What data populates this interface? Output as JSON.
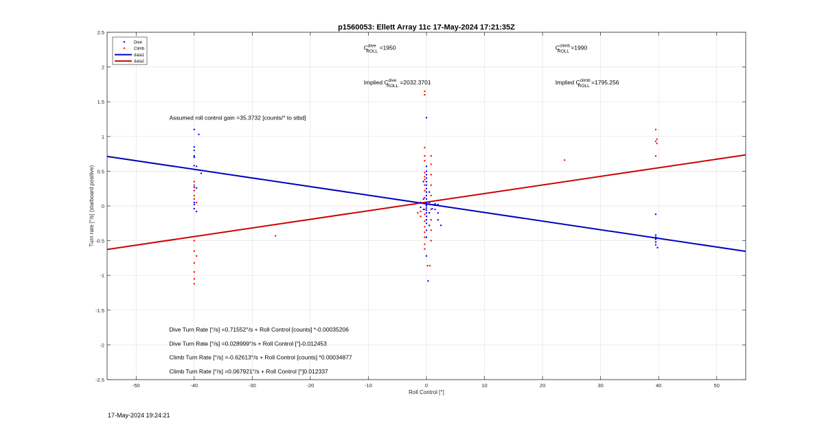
{
  "figure_timestamp": "17-May-2024 19:24:21",
  "chart_data": {
    "type": "scatter",
    "title": "p1560053: Ellett Array 11c 17-May-2024 17:21:35Z",
    "xlabel": "Roll Control [°]",
    "ylabel": "Turn rate [°/s] (starboard positive)",
    "xlim": [
      -55,
      55
    ],
    "ylim": [
      -2.5,
      2.5
    ],
    "xticks": [
      -50,
      -40,
      -30,
      -20,
      -10,
      0,
      10,
      20,
      30,
      40,
      50
    ],
    "xtick_labels": [
      "-50",
      "-40",
      "-30",
      "-20",
      "-10",
      "0",
      "10",
      "20",
      "30",
      "40",
      "50"
    ],
    "yticks": [
      -2.5,
      -2,
      -1.5,
      -1,
      -0.5,
      0,
      0.5,
      1,
      1.5,
      2,
      2.5
    ],
    "ytick_labels": [
      "-2.5",
      "-2",
      "-1.5",
      "-1",
      "-0.5",
      "0",
      "0.5",
      "1",
      "1.5",
      "2",
      "2.5"
    ],
    "grid": true,
    "legend_position": "top-left",
    "legend": [
      {
        "label": "Dive",
        "type": "marker",
        "color": "#0000ff"
      },
      {
        "label": "Climb",
        "type": "marker",
        "color": "#ff0000"
      },
      {
        "label": "data1",
        "type": "line",
        "color": "#0000bf"
      },
      {
        "label": "data2",
        "type": "line",
        "color": "#cc0000"
      }
    ],
    "series": [
      {
        "name": "Dive",
        "mode": "markers",
        "color": "#0000ff",
        "points": [
          [
            -40,
            1.1
          ],
          [
            -39.2,
            1.03
          ],
          [
            -40,
            0.85
          ],
          [
            -40,
            0.8
          ],
          [
            -40,
            0.72
          ],
          [
            -40,
            0.7
          ],
          [
            -40,
            0.58
          ],
          [
            -39.6,
            0.57
          ],
          [
            -38.8,
            0.47
          ],
          [
            -40,
            0.27
          ],
          [
            -39.6,
            0.26
          ],
          [
            -40,
            0.05
          ],
          [
            -40,
            0.02
          ],
          [
            -40,
            -0.04
          ],
          [
            -39.6,
            -0.08
          ],
          [
            0,
            1.27
          ],
          [
            0,
            0.57
          ],
          [
            0,
            0.5
          ],
          [
            0,
            0.45
          ],
          [
            0,
            0.4
          ],
          [
            0,
            0.35
          ],
          [
            0,
            0.3
          ],
          [
            0,
            0.25
          ],
          [
            0,
            0.2
          ],
          [
            0,
            0.15
          ],
          [
            0,
            0.1
          ],
          [
            0,
            0.05
          ],
          [
            0,
            0.02
          ],
          [
            0,
            0
          ],
          [
            0,
            -0.03
          ],
          [
            0,
            -0.06
          ],
          [
            0,
            -0.1
          ],
          [
            0,
            -0.15
          ],
          [
            0,
            -0.2
          ],
          [
            0,
            -0.25
          ],
          [
            0,
            -0.35
          ],
          [
            0,
            -0.45
          ],
          [
            0,
            -0.72
          ],
          [
            0.3,
            -1.08
          ],
          [
            -0.5,
            0.35
          ],
          [
            -0.5,
            0.1
          ],
          [
            -0.5,
            -0.05
          ],
          [
            0.5,
            0.2
          ],
          [
            0.5,
            0.05
          ],
          [
            0.5,
            -0.1
          ],
          [
            0.5,
            -0.28
          ],
          [
            1,
            0.02
          ],
          [
            1,
            -0.04
          ],
          [
            1.5,
            0.03
          ],
          [
            1.5,
            -0.05
          ],
          [
            2,
            0.02
          ],
          [
            2,
            -0.1
          ],
          [
            2,
            -0.2
          ],
          [
            2.5,
            -0.28
          ],
          [
            -1,
            0.05
          ],
          [
            -1,
            -0.02
          ],
          [
            39.5,
            -0.12
          ],
          [
            39.5,
            -0.42
          ],
          [
            39.5,
            -0.45
          ],
          [
            39.7,
            -0.46
          ],
          [
            39.5,
            -0.48
          ],
          [
            39.5,
            -0.52
          ],
          [
            39.5,
            -0.56
          ],
          [
            39.8,
            -0.6
          ]
        ]
      },
      {
        "name": "Climb",
        "mode": "markers",
        "color": "#ff0000",
        "points": [
          [
            -40,
            0.35
          ],
          [
            -40,
            0.3
          ],
          [
            -40,
            0.22
          ],
          [
            -40,
            0.15
          ],
          [
            -40,
            0.1
          ],
          [
            -39.6,
            0.05
          ],
          [
            -40,
            -0.5
          ],
          [
            -40,
            -0.65
          ],
          [
            -39.6,
            -0.72
          ],
          [
            -40,
            -0.82
          ],
          [
            -40,
            -0.95
          ],
          [
            -40,
            -1.05
          ],
          [
            -40,
            -1.12
          ],
          [
            -26,
            -0.43
          ],
          [
            -0.3,
            1.65
          ],
          [
            -0.3,
            1.6
          ],
          [
            -0.3,
            0.84
          ],
          [
            -0.3,
            0.72
          ],
          [
            -0.3,
            0.65
          ],
          [
            -0.3,
            0.48
          ],
          [
            -0.3,
            0.42
          ],
          [
            -0.3,
            0.38
          ],
          [
            -0.3,
            0.3
          ],
          [
            -0.3,
            0.22
          ],
          [
            -0.3,
            0.12
          ],
          [
            -0.3,
            0.05
          ],
          [
            -0.3,
            -0.05
          ],
          [
            -0.3,
            -0.12
          ],
          [
            -0.3,
            -0.22
          ],
          [
            -0.3,
            -0.3
          ],
          [
            -0.3,
            -0.38
          ],
          [
            -0.3,
            -0.45
          ],
          [
            -0.3,
            -0.55
          ],
          [
            -0.3,
            -0.62
          ],
          [
            0.2,
            -0.86
          ],
          [
            0.6,
            -0.86
          ],
          [
            -1,
            -0.08
          ],
          [
            -1,
            -0.15
          ],
          [
            -1.5,
            -0.1
          ],
          [
            0.8,
            0.72
          ],
          [
            0.8,
            0.6
          ],
          [
            0.8,
            0.45
          ],
          [
            0.8,
            0.3
          ],
          [
            0.8,
            0.15
          ],
          [
            0.8,
            -0.05
          ],
          [
            0.8,
            -0.2
          ],
          [
            0.8,
            -0.35
          ],
          [
            0.8,
            -0.5
          ],
          [
            23.8,
            0.66
          ],
          [
            39.5,
            1.1
          ],
          [
            39.7,
            0.96
          ],
          [
            39.5,
            0.93
          ],
          [
            39.7,
            0.9
          ],
          [
            39.5,
            0.72
          ]
        ]
      },
      {
        "name": "data1",
        "mode": "line",
        "color": "#0000bf",
        "points": [
          [
            -55,
            0.713
          ],
          [
            55,
            -0.653
          ]
        ]
      },
      {
        "name": "data2",
        "mode": "line",
        "color": "#cc0000",
        "points": [
          [
            -55,
            -0.626
          ],
          [
            55,
            0.735
          ]
        ]
      }
    ],
    "annotations": [
      {
        "type": "roll",
        "prefix": "",
        "sup": "dive",
        "sub": "ROLL",
        "value": " =1950",
        "x": -10.8,
        "y": 2.25
      },
      {
        "type": "roll",
        "prefix": "",
        "sup": "climb",
        "sub": "ROLL",
        "value": " =1990",
        "x": 22.2,
        "y": 2.25
      },
      {
        "type": "roll",
        "prefix": "Implied ",
        "sup": "dive",
        "sub": "ROLL",
        "value": " =2032.3701",
        "x": -10.8,
        "y": 1.75
      },
      {
        "type": "roll",
        "prefix": "Implied ",
        "sup": "climb",
        "sub": "ROLL",
        "value": " =1795.256",
        "x": 22.2,
        "y": 1.75
      },
      {
        "type": "text",
        "text": "Assumed roll control gain =35.3732 [counts/° to stbd]",
        "x": -44.3,
        "y": 1.24
      },
      {
        "type": "text",
        "text": "Dive Turn Rate [°/s] =0.71552°/s + Roll Control [counts] *-0.00035206",
        "x": -44.3,
        "y": -1.81
      },
      {
        "type": "text",
        "text": "Dive Turn Rate [°/s] =0.028999°/s + Roll Control [°]-0.012453",
        "x": -44.3,
        "y": -2.01
      },
      {
        "type": "text",
        "text": "Climb Turn Rate [°/s] =-0.62613°/s + Roll Control [counts] *0.00034877",
        "x": -44.3,
        "y": -2.21
      },
      {
        "type": "text",
        "text": "Climb Turn Rate [°/s] =0.067921°/s + Roll Control [°]0.012337",
        "x": -44.3,
        "y": -2.41
      }
    ]
  }
}
